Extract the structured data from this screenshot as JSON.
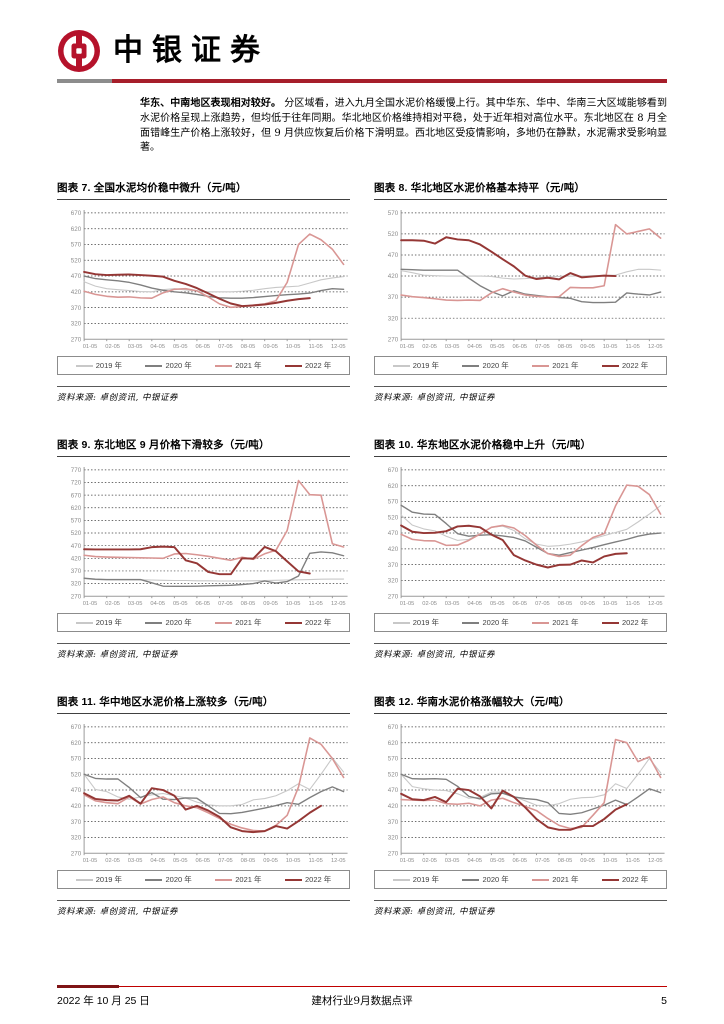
{
  "header": {
    "brand": "中银证券"
  },
  "colors": {
    "brand_red": "#b5122b",
    "header_rule_red": "#a61e2a",
    "header_rule_gray": "#8c8c8c",
    "footer_rule_red": "#c00000",
    "series_2019": "#c8c8c8",
    "series_2020": "#7f7f7f",
    "series_2021": "#d99694",
    "series_2022": "#953735"
  },
  "intro": {
    "lead": "华东、中南地区表现相对较好。",
    "body": "分区域看，进入九月全国水泥价格缓慢上行。其中华东、华中、华南三大区域能够看到水泥价格呈现上涨趋势，但均低于往年同期。华北地区价格维持相对平稳，处于近年相对高位水平。东北地区在 8 月全面错峰生产价格上涨较好，但 9 月供应恢复后价格下滑明显。西北地区受疫情影响，多地仍在静默，水泥需求受影响显著。"
  },
  "chart_data": [
    {
      "type": "line",
      "title": "图表 7. 全国水泥均价稳中微升（元/吨）",
      "source": "资料来源: 卓创资讯, 中银证券",
      "ylim": [
        270,
        670
      ],
      "ytick_step": 50,
      "grid": true,
      "legend_position": "bottom",
      "x": [
        "01-05",
        "02-05",
        "03-05",
        "04-05",
        "05-05",
        "06-05",
        "07-05",
        "08-05",
        "09-05",
        "10-05",
        "11-05",
        "12-05"
      ],
      "series": [
        {
          "name": "2019 年",
          "color": "#c8c8c8",
          "values": [
            452,
            438,
            430,
            427,
            424,
            421,
            420,
            427,
            430,
            426,
            423,
            420,
            420,
            420,
            422,
            425,
            430,
            434,
            436,
            438,
            448,
            458,
            464,
            468
          ]
        },
        {
          "name": "2020 年",
          "color": "#7f7f7f",
          "values": [
            470,
            462,
            458,
            455,
            450,
            442,
            432,
            425,
            420,
            417,
            412,
            406,
            401,
            400,
            400,
            402,
            405,
            408,
            411,
            413,
            416,
            424,
            430,
            428
          ]
        },
        {
          "name": "2021 年",
          "color": "#d99694",
          "values": [
            422,
            412,
            406,
            403,
            404,
            401,
            400,
            417,
            428,
            430,
            423,
            404,
            382,
            371,
            373,
            378,
            382,
            392,
            450,
            570,
            603,
            585,
            555,
            507
          ]
        },
        {
          "name": "2022 年",
          "color": "#953735",
          "values": [
            483,
            476,
            473,
            474,
            475,
            473,
            471,
            468,
            455,
            445,
            432,
            415,
            398,
            383,
            375,
            377,
            380,
            385,
            392,
            397,
            400
          ]
        }
      ]
    },
    {
      "type": "line",
      "title": "图表 8. 华北地区水泥价格基本持平（元/吨）",
      "source": "资料来源: 卓创资讯, 中银证券",
      "ylim": [
        270,
        570
      ],
      "ytick_step": 50,
      "grid": true,
      "legend_position": "bottom",
      "x": [
        "01-05",
        "02-05",
        "03-05",
        "04-05",
        "05-05",
        "06-05",
        "07-05",
        "08-05",
        "09-05",
        "10-05",
        "11-05",
        "12-05"
      ],
      "series": [
        {
          "name": "2019 年",
          "color": "#c8c8c8",
          "values": [
            433,
            428,
            422,
            421,
            420,
            420,
            420,
            420,
            419,
            415,
            413,
            414,
            416,
            418,
            419,
            420,
            420,
            421,
            421,
            422,
            430,
            436,
            436,
            434
          ]
        },
        {
          "name": "2020 年",
          "color": "#7f7f7f",
          "values": [
            436,
            435,
            434,
            434,
            434,
            434,
            415,
            397,
            383,
            373,
            385,
            377,
            374,
            371,
            369,
            367,
            359,
            357,
            357,
            358,
            380,
            377,
            375,
            382
          ]
        },
        {
          "name": "2021 年",
          "color": "#d99694",
          "values": [
            375,
            371,
            369,
            366,
            363,
            362,
            363,
            362,
            380,
            390,
            382,
            375,
            372,
            370,
            371,
            393,
            392,
            392,
            397,
            542,
            520,
            526,
            532,
            510
          ]
        },
        {
          "name": "2022 年",
          "color": "#953735",
          "values": [
            505,
            505,
            504,
            497,
            512,
            507,
            505,
            495,
            478,
            460,
            443,
            421,
            413,
            416,
            412,
            427,
            417,
            419,
            421,
            420
          ]
        }
      ]
    },
    {
      "type": "line",
      "title": "图表 9. 东北地区 9 月价格下滑较多（元/吨）",
      "source": "资料来源: 卓创资讯, 中银证券",
      "ylim": [
        270,
        770
      ],
      "ytick_step": 50,
      "grid": true,
      "legend_position": "bottom",
      "x": [
        "01-05",
        "02-05",
        "03-05",
        "04-05",
        "05-05",
        "06-05",
        "07-05",
        "08-05",
        "09-05",
        "10-05",
        "11-05",
        "12-05"
      ],
      "series": [
        {
          "name": "2019 年",
          "color": "#c8c8c8",
          "values": [
            340,
            336,
            335,
            335,
            335,
            335,
            334,
            333,
            332,
            332,
            331,
            331,
            330,
            330,
            330,
            331,
            332,
            333,
            334,
            335,
            336,
            337,
            338,
            338
          ]
        },
        {
          "name": "2020 年",
          "color": "#7f7f7f",
          "values": [
            341,
            337,
            336,
            336,
            336,
            336,
            323,
            310,
            309,
            309,
            310,
            311,
            312,
            313,
            316,
            320,
            330,
            322,
            328,
            350,
            440,
            445,
            442,
            430
          ]
        },
        {
          "name": "2021 年",
          "color": "#d99694",
          "values": [
            432,
            427,
            425,
            424,
            423,
            422,
            421,
            420,
            437,
            439,
            434,
            428,
            420,
            412,
            424,
            416,
            438,
            452,
            530,
            728,
            672,
            670,
            478,
            465
          ]
        },
        {
          "name": "2022 年",
          "color": "#953735",
          "values": [
            456,
            455,
            455,
            455,
            455,
            456,
            464,
            466,
            464,
            412,
            400,
            366,
            357,
            357,
            420,
            419,
            465,
            448,
            408,
            368,
            360
          ]
        }
      ]
    },
    {
      "type": "line",
      "title": "图表 10. 华东地区水泥价格稳中上升（元/吨）",
      "source": "资料来源: 卓创资讯, 中银证券",
      "ylim": [
        270,
        670
      ],
      "ytick_step": 50,
      "grid": true,
      "legend_position": "bottom",
      "x": [
        "01-05",
        "02-05",
        "03-05",
        "04-05",
        "05-05",
        "06-05",
        "07-05",
        "08-05",
        "09-05",
        "10-05",
        "11-05",
        "12-05"
      ],
      "series": [
        {
          "name": "2019 年",
          "color": "#c8c8c8",
          "values": [
            527,
            495,
            483,
            477,
            460,
            447,
            450,
            468,
            488,
            492,
            478,
            452,
            435,
            428,
            430,
            435,
            442,
            452,
            462,
            472,
            482,
            505,
            530,
            557
          ]
        },
        {
          "name": "2020 年",
          "color": "#7f7f7f",
          "values": [
            558,
            536,
            530,
            529,
            500,
            468,
            460,
            463,
            465,
            461,
            456,
            445,
            425,
            405,
            400,
            408,
            416,
            424,
            433,
            442,
            450,
            460,
            467,
            470
          ]
        },
        {
          "name": "2021 年",
          "color": "#d99694",
          "values": [
            466,
            450,
            446,
            445,
            431,
            432,
            447,
            467,
            488,
            494,
            486,
            462,
            432,
            405,
            396,
            400,
            430,
            456,
            468,
            556,
            622,
            618,
            592,
            530
          ]
        },
        {
          "name": "2022 年",
          "color": "#953735",
          "values": [
            494,
            474,
            470,
            471,
            476,
            491,
            493,
            488,
            465,
            448,
            400,
            383,
            370,
            361,
            369,
            370,
            383,
            377,
            396,
            404,
            406
          ]
        }
      ]
    },
    {
      "type": "line",
      "title": "图表 11. 华中地区水泥价格上涨较多（元/吨）",
      "source": "资料来源: 卓创资讯, 中银证券",
      "ylim": [
        270,
        670
      ],
      "ytick_step": 50,
      "grid": true,
      "legend_position": "bottom",
      "x": [
        "01-05",
        "02-05",
        "03-05",
        "04-05",
        "05-05",
        "06-05",
        "07-05",
        "08-05",
        "09-05",
        "10-05",
        "11-05",
        "12-05"
      ],
      "series": [
        {
          "name": "2019 年",
          "color": "#c8c8c8",
          "values": [
            520,
            472,
            465,
            448,
            441,
            448,
            455,
            459,
            452,
            445,
            432,
            423,
            420,
            420,
            424,
            439,
            443,
            452,
            468,
            490,
            472,
            520,
            572,
            527
          ]
        },
        {
          "name": "2020 年",
          "color": "#7f7f7f",
          "values": [
            520,
            507,
            505,
            505,
            478,
            446,
            462,
            441,
            440,
            445,
            444,
            420,
            396,
            395,
            399,
            406,
            413,
            421,
            430,
            425,
            446,
            465,
            480,
            465
          ]
        },
        {
          "name": "2021 年",
          "color": "#d99694",
          "values": [
            455,
            436,
            430,
            427,
            448,
            426,
            440,
            448,
            430,
            420,
            414,
            398,
            380,
            362,
            350,
            342,
            340,
            358,
            390,
            480,
            635,
            615,
            570,
            510
          ]
        },
        {
          "name": "2022 年",
          "color": "#953735",
          "values": [
            460,
            442,
            438,
            437,
            452,
            427,
            476,
            470,
            452,
            408,
            420,
            405,
            385,
            352,
            340,
            337,
            340,
            356,
            348,
            372,
            398,
            420
          ]
        }
      ]
    },
    {
      "type": "line",
      "title": "图表 12. 华南水泥价格涨幅较大（元/吨）",
      "source": "资料来源: 卓创资讯, 中银证券",
      "ylim": [
        270,
        670
      ],
      "ytick_step": 50,
      "grid": true,
      "legend_position": "bottom",
      "x": [
        "01-05",
        "02-05",
        "03-05",
        "04-05",
        "05-05",
        "06-05",
        "07-05",
        "08-05",
        "09-05",
        "10-05",
        "11-05",
        "12-05"
      ],
      "series": [
        {
          "name": "2019 年",
          "color": "#c8c8c8",
          "values": [
            520,
            481,
            474,
            470,
            468,
            458,
            444,
            447,
            463,
            464,
            450,
            436,
            422,
            420,
            427,
            441,
            446,
            447,
            455,
            490,
            475,
            520,
            570,
            525
          ]
        },
        {
          "name": "2020 年",
          "color": "#7f7f7f",
          "values": [
            520,
            506,
            505,
            506,
            504,
            482,
            450,
            442,
            458,
            460,
            448,
            443,
            440,
            430,
            396,
            393,
            398,
            410,
            422,
            438,
            424,
            448,
            474,
            462
          ]
        },
        {
          "name": "2021 年",
          "color": "#d99694",
          "values": [
            440,
            438,
            437,
            438,
            427,
            425,
            428,
            420,
            438,
            444,
            430,
            418,
            405,
            380,
            358,
            348,
            352,
            390,
            430,
            630,
            620,
            560,
            575,
            510
          ]
        },
        {
          "name": "2022 年",
          "color": "#953735",
          "values": [
            458,
            441,
            438,
            448,
            432,
            474,
            470,
            450,
            412,
            468,
            448,
            415,
            378,
            352,
            344,
            344,
            356,
            356,
            378,
            408,
            425
          ]
        }
      ]
    }
  ],
  "footer": {
    "date": "2022 年 10 月 25 日",
    "doc_title": "建材行业9月数据点评",
    "page_number": "5"
  }
}
